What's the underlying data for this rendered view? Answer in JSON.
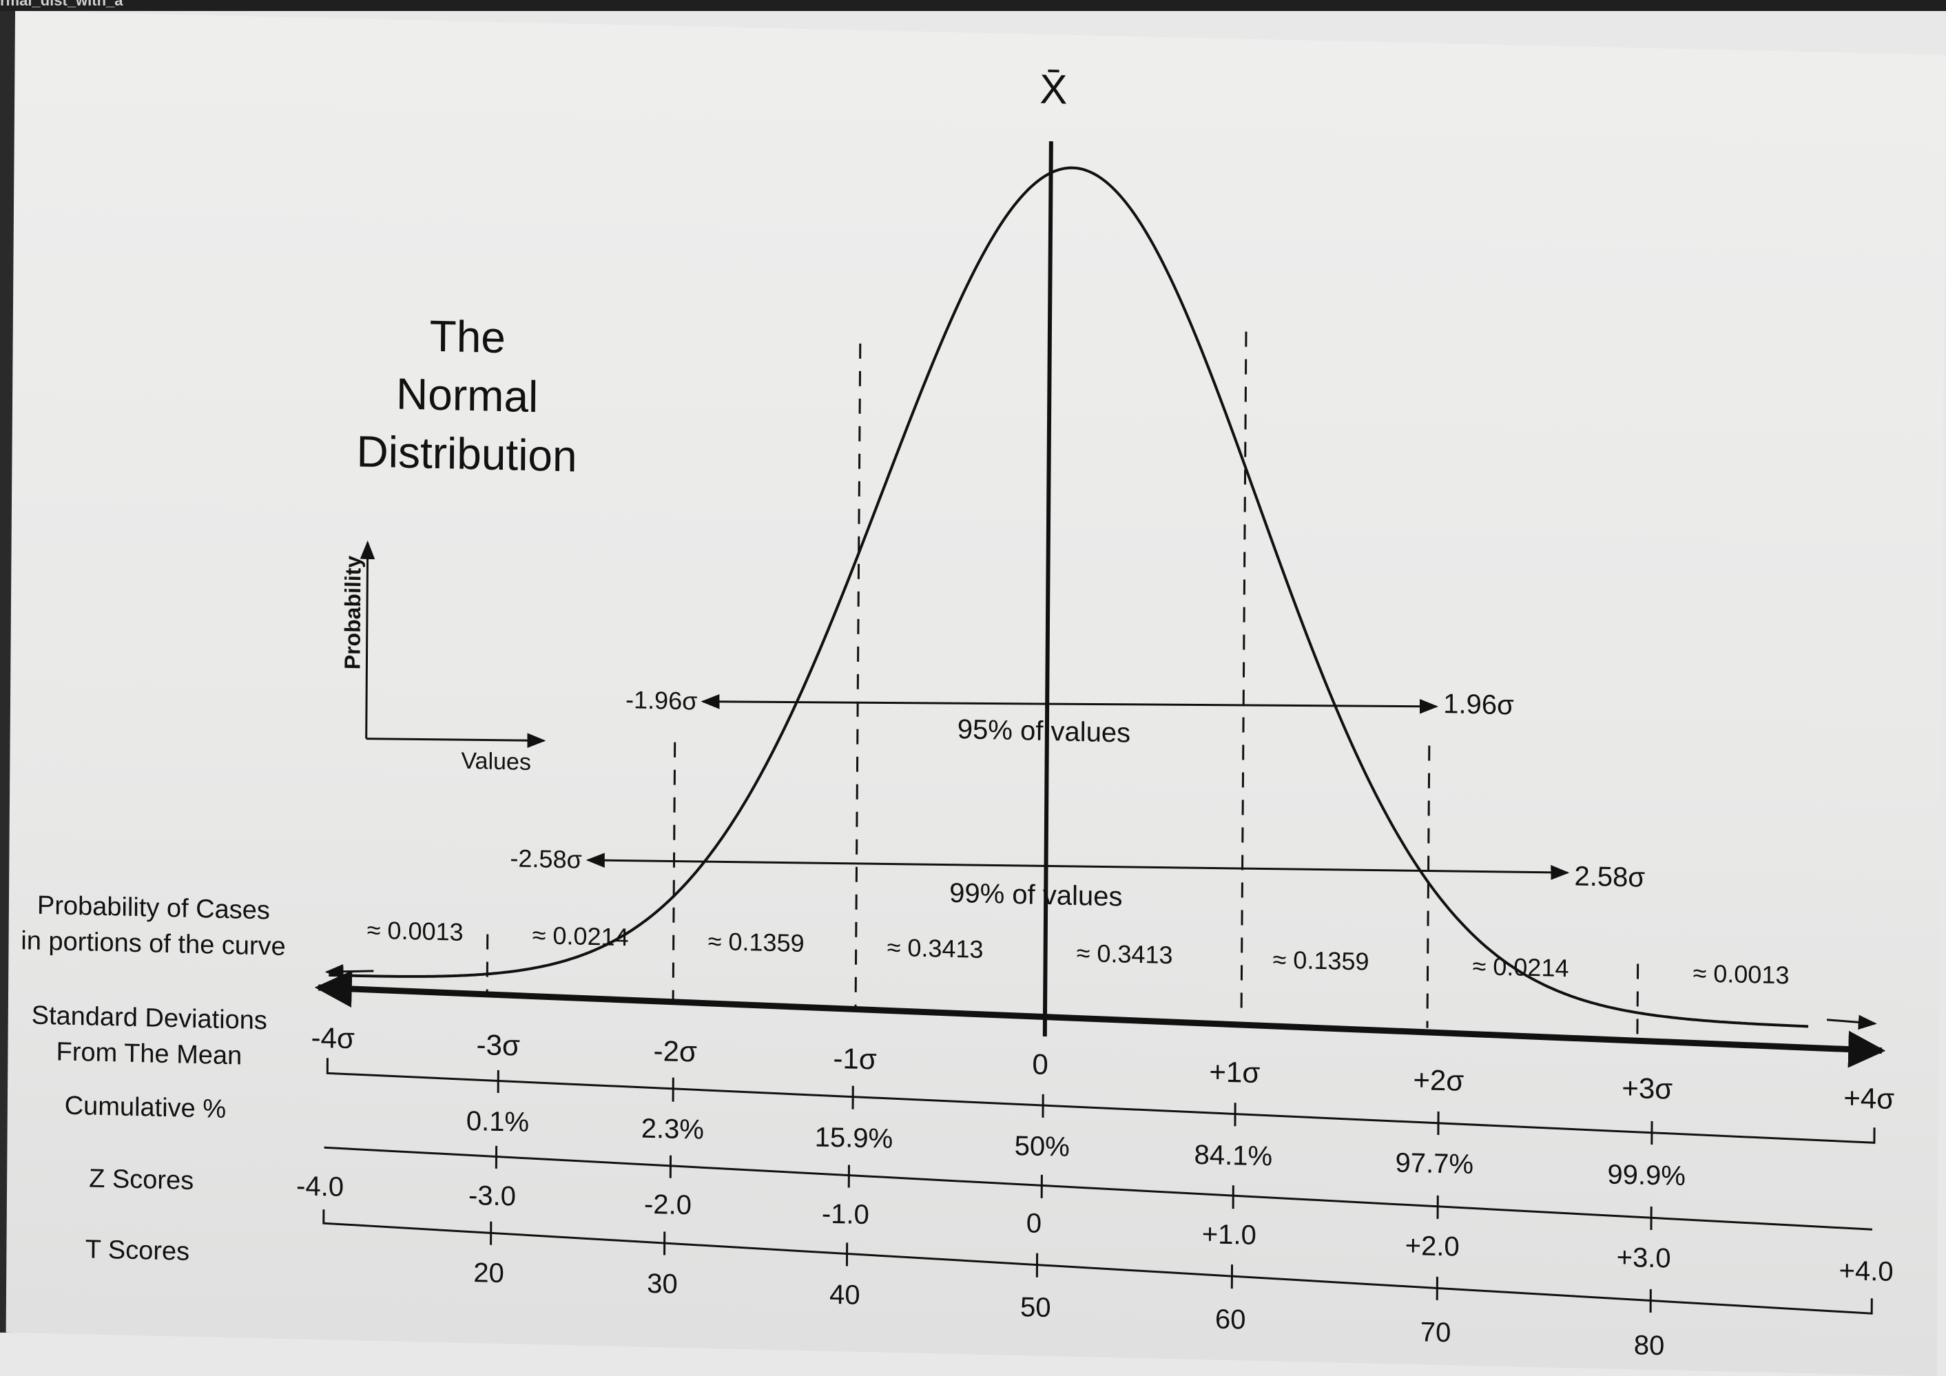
{
  "window": {
    "tab_title": "rmal_dist_with_a"
  },
  "title": {
    "line1": "The",
    "line2": "Normal",
    "line3": "Distribution"
  },
  "mean_symbol": "X̄",
  "inset": {
    "ylabel": "Probability",
    "xlabel": "Values"
  },
  "intervals": {
    "p95": {
      "left": "-1.96σ",
      "right": "1.96σ",
      "label": "95% of values"
    },
    "p99": {
      "left": "-2.58σ",
      "right": "2.58σ",
      "label": "99% of values"
    }
  },
  "row_labels": {
    "prob_line1": "Probability of Cases",
    "prob_line2": "in portions of the curve",
    "sd_line1": "Standard Deviations",
    "sd_line2": "From The Mean",
    "cumulative": "Cumulative %",
    "z": "Z Scores",
    "t": "T Scores"
  },
  "portions": [
    "≈ 0.0013",
    "≈ 0.0214",
    "≈ 0.1359",
    "≈ 0.3413",
    "≈ 0.3413",
    "≈ 0.1359",
    "≈ 0.0214",
    "≈ 0.0013"
  ],
  "sigma_labels": [
    "-4σ",
    "-3σ",
    "-2σ",
    "-1σ",
    "0",
    "+1σ",
    "+2σ",
    "+3σ",
    "+4σ"
  ],
  "cumulative": [
    "0.1%",
    "2.3%",
    "15.9%",
    "50%",
    "84.1%",
    "97.7%",
    "99.9%"
  ],
  "z_scores": [
    "-4.0",
    "-3.0",
    "-2.0",
    "-1.0",
    "0",
    "+1.0",
    "+2.0",
    "+3.0",
    "+4.0"
  ],
  "t_scores": [
    "20",
    "30",
    "40",
    "50",
    "60",
    "70",
    "80"
  ]
}
